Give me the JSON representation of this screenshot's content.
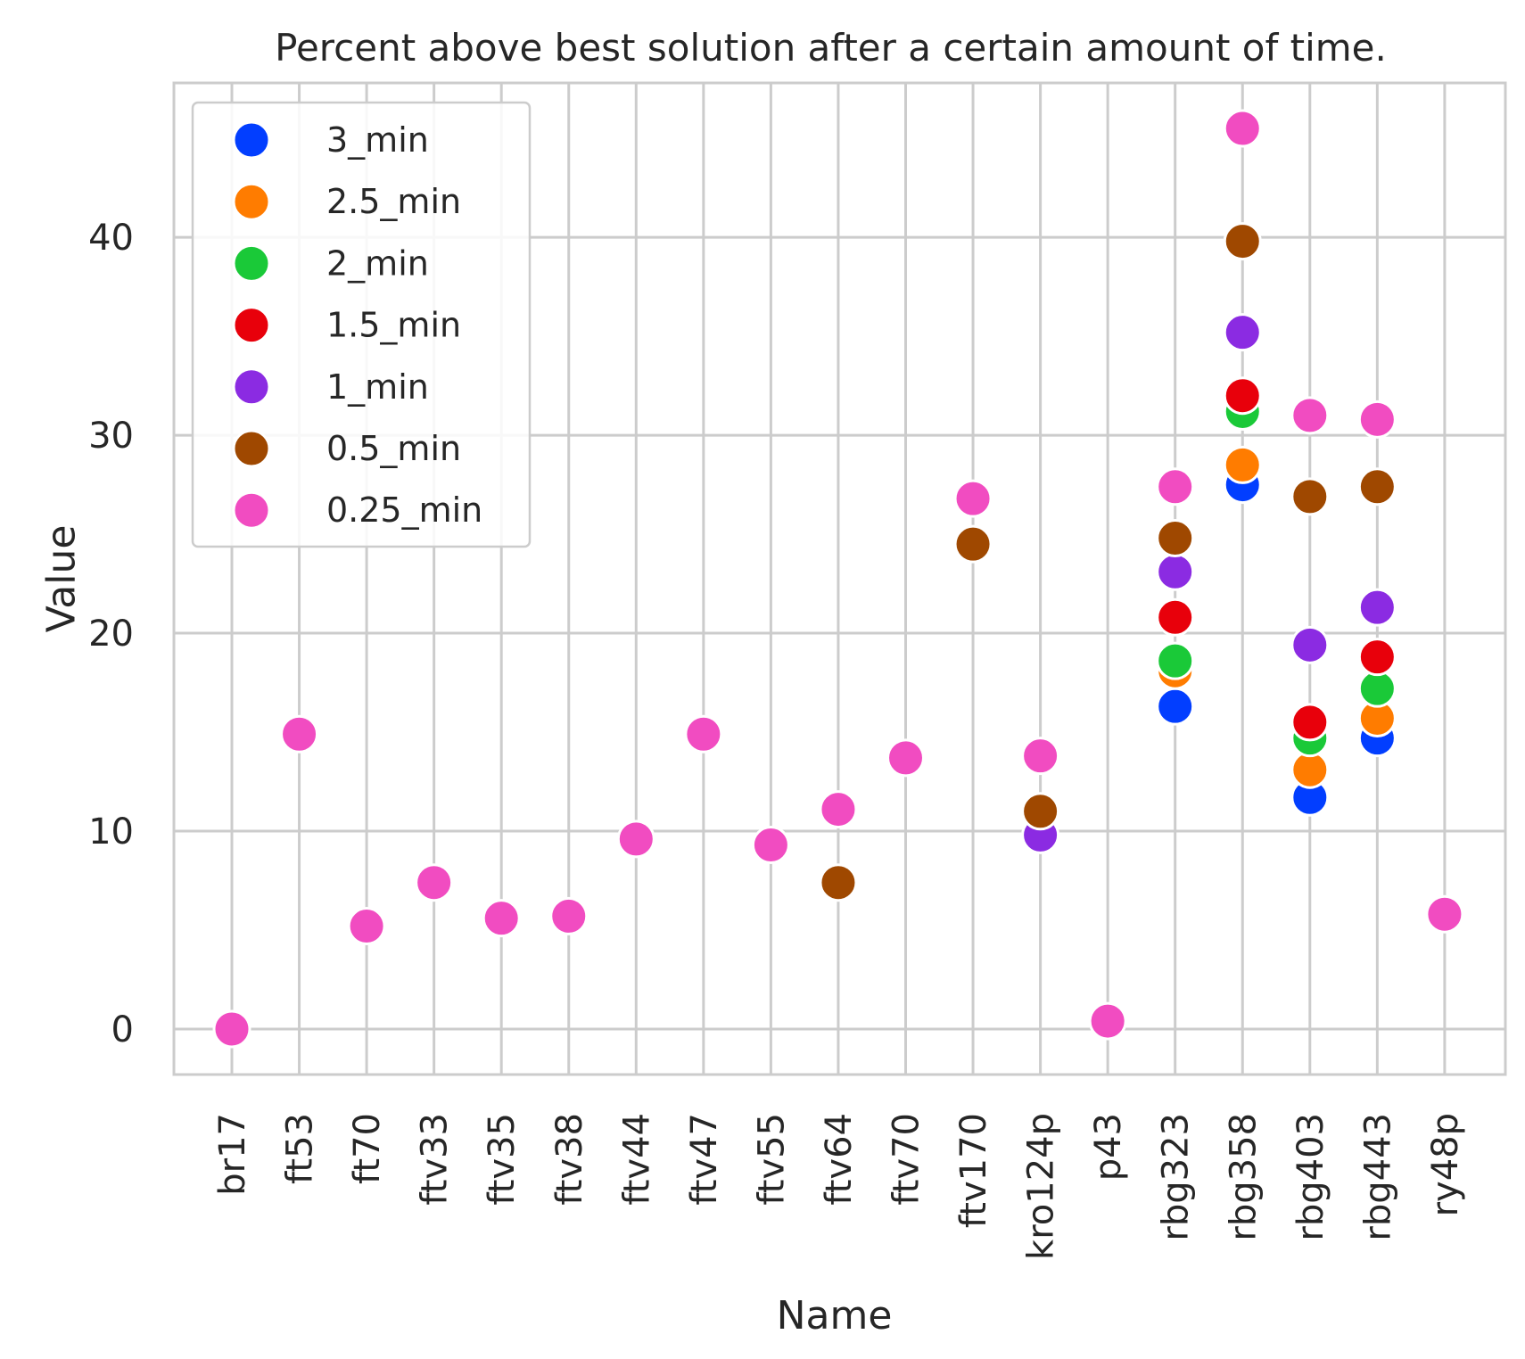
{
  "chart_data": {
    "type": "scatter",
    "title": "Percent above best solution after a certain amount of time.",
    "xlabel": "Name",
    "ylabel": "Value",
    "ylim": [
      -2.3,
      47.8
    ],
    "yticks": [
      0,
      10,
      20,
      30,
      40
    ],
    "grid": true,
    "legend_position": "top-left",
    "categories": [
      "br17",
      "ft53",
      "ft70",
      "ftv33",
      "ftv35",
      "ftv38",
      "ftv44",
      "ftv47",
      "ftv55",
      "ftv64",
      "ftv70",
      "ftv170",
      "kro124p",
      "p43",
      "rbg323",
      "rbg358",
      "rbg403",
      "rbg443",
      "ry48p"
    ],
    "series": [
      {
        "name": "3_min",
        "color": "#023eff",
        "values": [
          null,
          null,
          null,
          null,
          null,
          null,
          null,
          null,
          null,
          null,
          null,
          null,
          null,
          null,
          16.3,
          27.5,
          11.7,
          14.7,
          null
        ]
      },
      {
        "name": "2.5_min",
        "color": "#ff7c00",
        "values": [
          null,
          null,
          null,
          null,
          null,
          null,
          null,
          null,
          null,
          null,
          null,
          null,
          null,
          null,
          18.1,
          28.5,
          13.1,
          15.7,
          null
        ]
      },
      {
        "name": "2_min",
        "color": "#1ac938",
        "values": [
          null,
          null,
          null,
          null,
          null,
          null,
          null,
          null,
          null,
          null,
          null,
          null,
          null,
          null,
          18.6,
          31.2,
          14.7,
          17.2,
          null
        ]
      },
      {
        "name": "1.5_min",
        "color": "#e8000b",
        "values": [
          null,
          null,
          null,
          null,
          null,
          null,
          null,
          null,
          null,
          null,
          null,
          null,
          null,
          null,
          20.8,
          32.0,
          15.5,
          18.8,
          null
        ]
      },
      {
        "name": "1_min",
        "color": "#8b2be2",
        "values": [
          null,
          null,
          null,
          null,
          null,
          null,
          null,
          null,
          null,
          null,
          null,
          null,
          9.8,
          null,
          23.1,
          35.2,
          19.4,
          21.3,
          null
        ]
      },
      {
        "name": "0.5_min",
        "color": "#9f4800",
        "values": [
          null,
          null,
          null,
          null,
          null,
          null,
          null,
          null,
          null,
          7.4,
          null,
          24.5,
          11.0,
          null,
          24.8,
          39.8,
          26.9,
          27.4,
          null
        ]
      },
      {
        "name": "0.25_min",
        "color": "#f14cc1",
        "values": [
          0.0,
          14.9,
          5.2,
          7.4,
          5.6,
          5.7,
          9.6,
          14.9,
          9.3,
          11.1,
          13.7,
          26.8,
          13.8,
          0.4,
          27.4,
          45.5,
          31.0,
          30.8,
          5.8
        ]
      }
    ]
  }
}
